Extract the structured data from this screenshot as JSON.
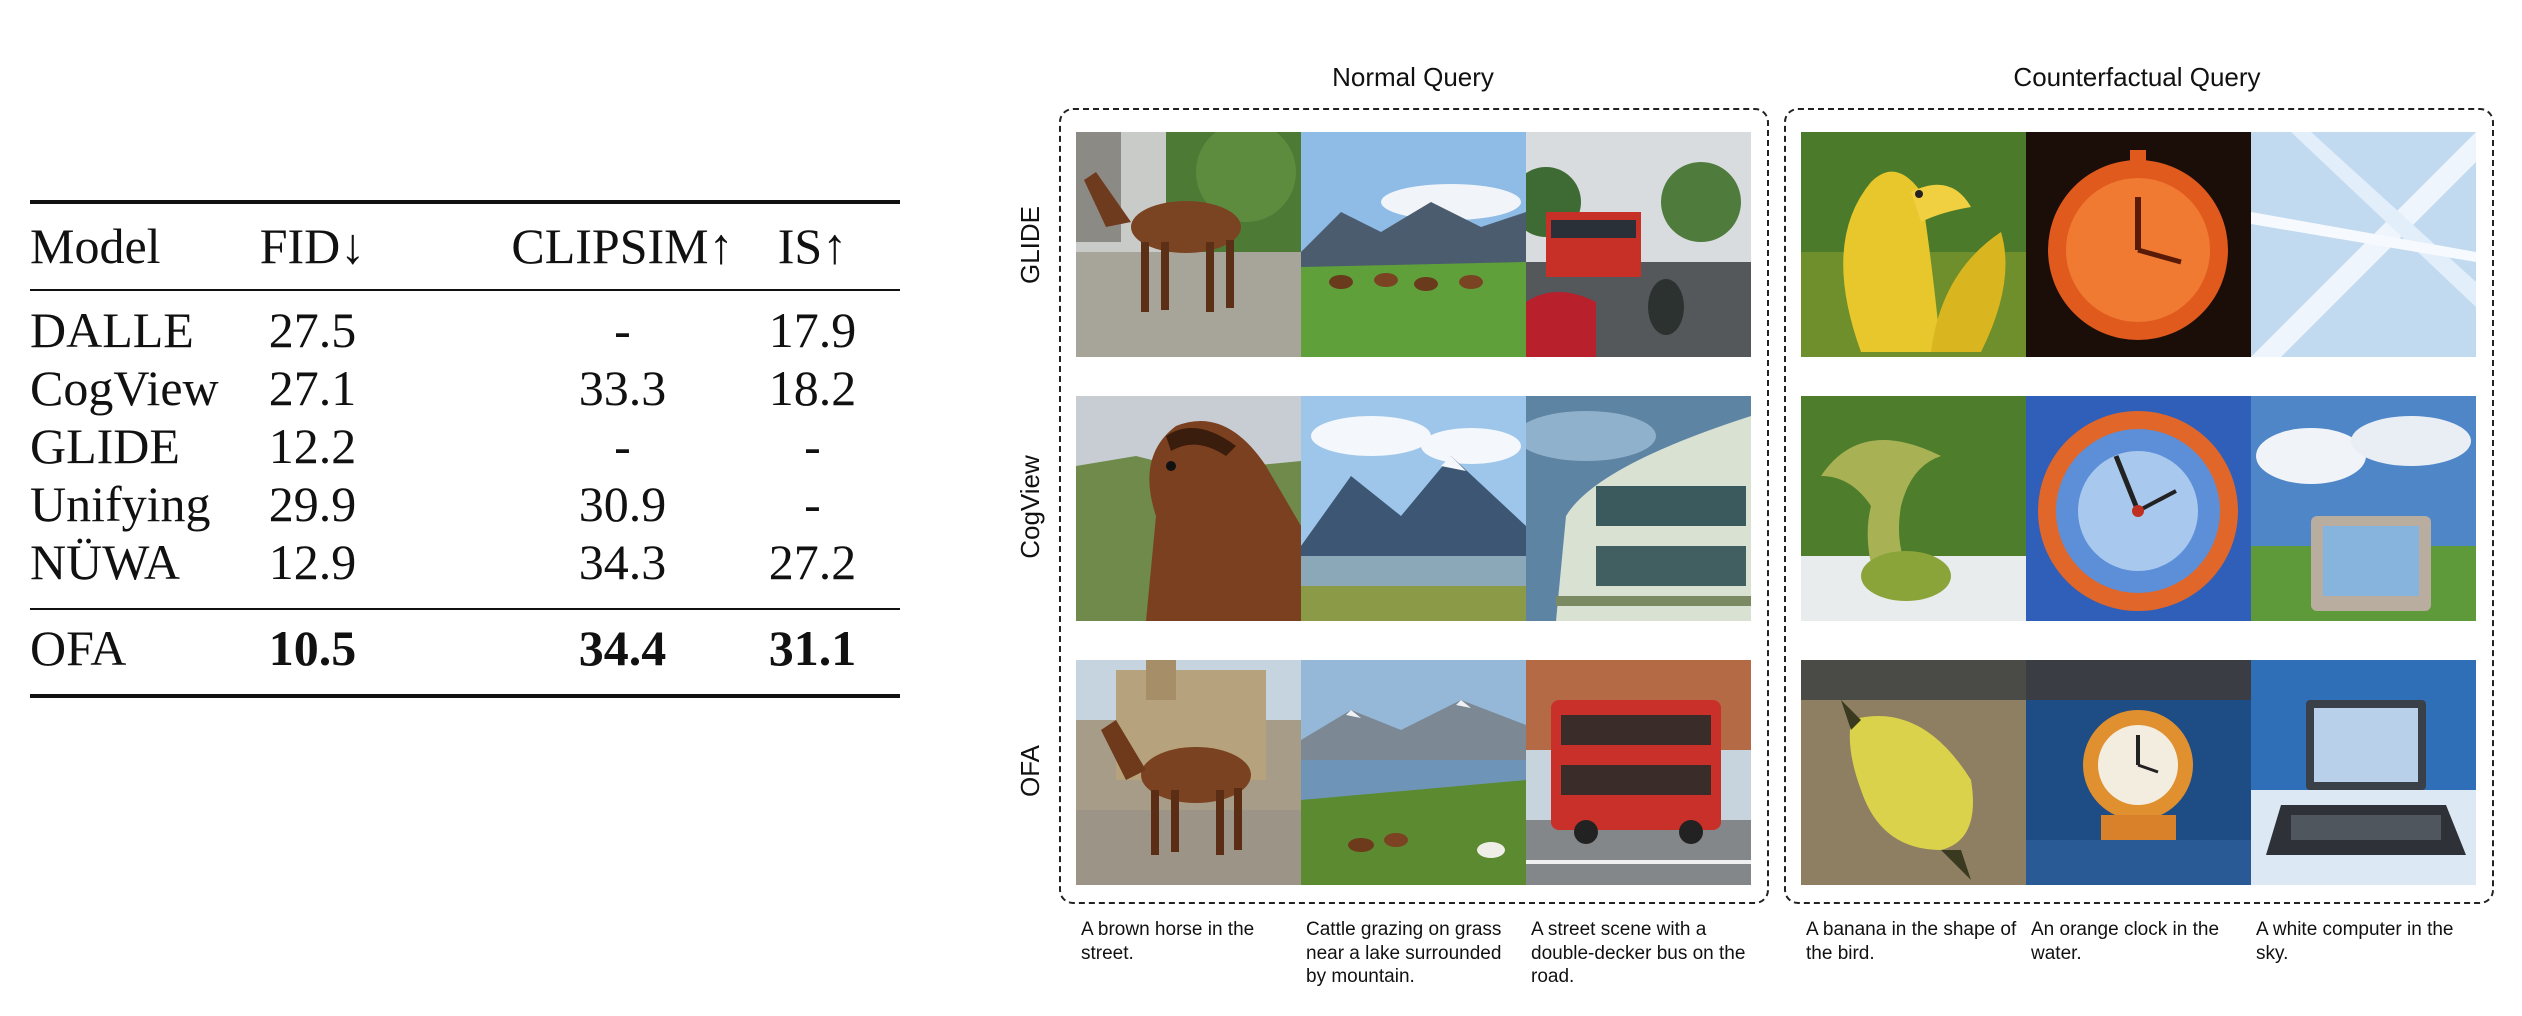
{
  "table": {
    "headers": [
      "Model",
      "FID↓",
      "CLIPSIM↑",
      "IS↑"
    ],
    "rows": [
      [
        "DALLE",
        "27.5",
        "-",
        "17.9"
      ],
      [
        "CogView",
        "27.1",
        "33.3",
        "18.2"
      ],
      [
        "GLIDE",
        "12.2",
        "-",
        "-"
      ],
      [
        "Unifying",
        "29.9",
        "30.9",
        "-"
      ],
      [
        "NÜWA",
        "12.9",
        "34.3",
        "27.2"
      ]
    ],
    "final_row": [
      "OFA",
      "10.5",
      "34.4",
      "31.1"
    ]
  },
  "figure": {
    "normal_title": "Normal Query",
    "counterfactual_title": "Counterfactual Query",
    "row_labels": [
      "GLIDE",
      "CogView",
      "OFA"
    ],
    "captions": [
      "A brown horse in the street.",
      "Cattle grazing on grass near a lake surrounded by mountain.",
      "A street scene with a double-decker bus on the road.",
      "A banana in the shape of the bird.",
      "An orange clock in the water.",
      "A white computer in the sky."
    ],
    "images": {
      "glide": [
        "horse-street",
        "cattle-mountain",
        "bus-street",
        "banana-bird",
        "clock-water",
        "computer-sky"
      ],
      "cogview": [
        "horse-street",
        "cattle-mountain",
        "bus-street",
        "banana-bird",
        "clock-water",
        "computer-sky"
      ],
      "ofa": [
        "horse-street",
        "cattle-mountain",
        "bus-street",
        "banana-bird",
        "clock-water",
        "computer-sky"
      ]
    }
  }
}
